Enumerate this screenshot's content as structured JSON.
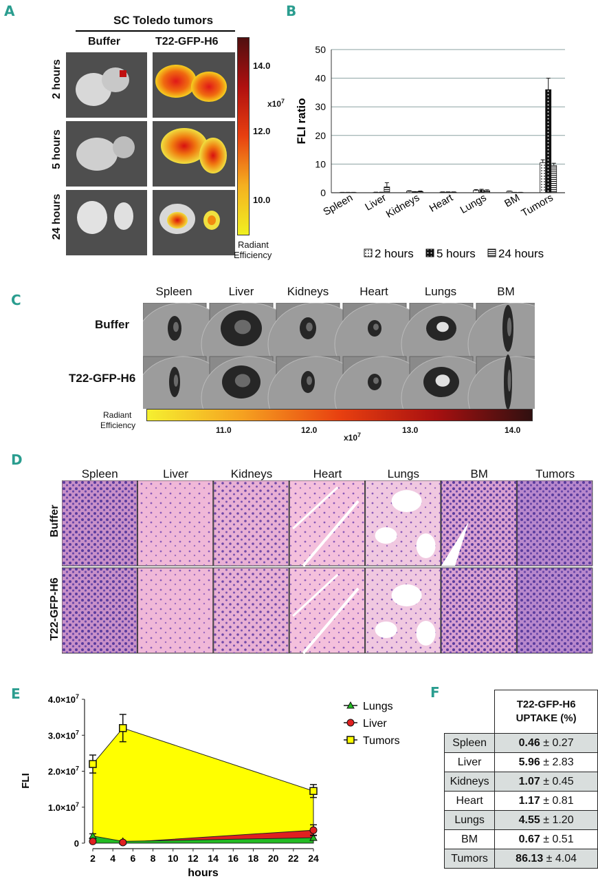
{
  "panel_labels": {
    "a": "A",
    "b": "B",
    "c": "C",
    "d": "D",
    "e": "E",
    "f": "F"
  },
  "panel_a": {
    "title": "SC  Toledo tumors",
    "columns": [
      "Buffer",
      "T22-GFP-H6"
    ],
    "rows": [
      "2 hours",
      "5 hours",
      "24 hours"
    ],
    "colorbar": {
      "ticks": [
        "14.0",
        "12.0",
        "10.0"
      ],
      "scale": "x10",
      "exponent": "7",
      "label1": "Radiant",
      "label2": "Efficiency"
    }
  },
  "panel_c": {
    "organs": [
      "Spleen",
      "Liver",
      "Kidneys",
      "Heart",
      "Lungs",
      "BM"
    ],
    "rows": [
      "Buffer",
      "T22-GFP-H6"
    ],
    "colorbar": {
      "label1": "Radiant",
      "label2": "Efficiency",
      "ticks": [
        "11.0",
        "12.0",
        "13.0",
        "14.0"
      ],
      "scale": "x10",
      "exponent": "7"
    }
  },
  "panel_d": {
    "organs": [
      "Spleen",
      "Liver",
      "Kidneys",
      "Heart",
      "Lungs",
      "BM",
      "Tumors"
    ],
    "rows": [
      "Buffer",
      "T22-GFP-H6"
    ]
  },
  "panel_f": {
    "header1": "T22-GFP-H6",
    "header2": "UPTAKE (%)",
    "rows": [
      {
        "organ": "Spleen",
        "mean": "0.46",
        "sd": "± 0.27"
      },
      {
        "organ": "Liver",
        "mean": "5.96",
        "sd": "± 2.83"
      },
      {
        "organ": "Kidneys",
        "mean": "1.07",
        "sd": "± 0.45"
      },
      {
        "organ": "Heart",
        "mean": "1.17",
        "sd": "± 0.81"
      },
      {
        "organ": "Lungs",
        "mean": "4.55",
        "sd": "± 1.20"
      },
      {
        "organ": "BM",
        "mean": "0.67",
        "sd": "± 0.51"
      },
      {
        "organ": "Tumors",
        "mean": "86.13",
        "sd": "± 4.04"
      }
    ]
  },
  "chart_data": [
    {
      "type": "bar",
      "title": "",
      "xlabel": "",
      "ylabel": "FLI ratio",
      "ylim": [
        0,
        50
      ],
      "yticks": [
        "0",
        "10",
        "20",
        "30",
        "40",
        "50"
      ],
      "categories": [
        "Spleen",
        "Liver",
        "Kidneys",
        "Heart",
        "Lungs",
        "BM",
        "Tumors"
      ],
      "legend": "bottom",
      "series": [
        {
          "name": "2 hours",
          "values": [
            0.1,
            0.1,
            0.5,
            0.2,
            0.8,
            0.5,
            10.5
          ],
          "errors": [
            0.05,
            0.1,
            0.2,
            0.1,
            0.3,
            0.1,
            1.0
          ]
        },
        {
          "name": "5 hours",
          "values": [
            0.1,
            0.1,
            0.3,
            0.2,
            0.9,
            0.1,
            36.0
          ],
          "errors": [
            0.05,
            0.1,
            0.1,
            0.1,
            0.3,
            0.05,
            4.0
          ]
        },
        {
          "name": "24 hours",
          "values": [
            0.1,
            2.0,
            0.4,
            0.2,
            0.7,
            0.1,
            9.5
          ],
          "errors": [
            0.05,
            1.5,
            0.2,
            0.1,
            0.3,
            0.05,
            0.8
          ]
        }
      ]
    },
    {
      "type": "area",
      "title": "",
      "xlabel": "hours",
      "ylabel": "FLI",
      "xlim": [
        2,
        24
      ],
      "xticks": [
        "2",
        "4",
        "6",
        "8",
        "10",
        "12",
        "14",
        "16",
        "18",
        "20",
        "22",
        "24"
      ],
      "ylim": [
        0,
        40000000
      ],
      "yticks": [
        "0",
        "1.0×10",
        "2.0×10",
        "3.0×10",
        "4.0×10"
      ],
      "ytick_exponent": "7",
      "legend": "top-right",
      "x": [
        2,
        5,
        24
      ],
      "series": [
        {
          "name": "Lungs",
          "values": [
            2000000,
            500000,
            1500000
          ],
          "errors": [
            600000,
            200000,
            700000
          ],
          "color": "#22bb22"
        },
        {
          "name": "Liver",
          "values": [
            500000,
            200000,
            3600000
          ],
          "errors": [
            200000,
            100000,
            1500000
          ],
          "color": "#e02020"
        },
        {
          "name": "Tumors",
          "values": [
            22000000,
            32000000,
            14500000
          ],
          "errors": [
            2500000,
            3800000,
            1800000
          ],
          "color": "#ffff00"
        }
      ]
    }
  ]
}
